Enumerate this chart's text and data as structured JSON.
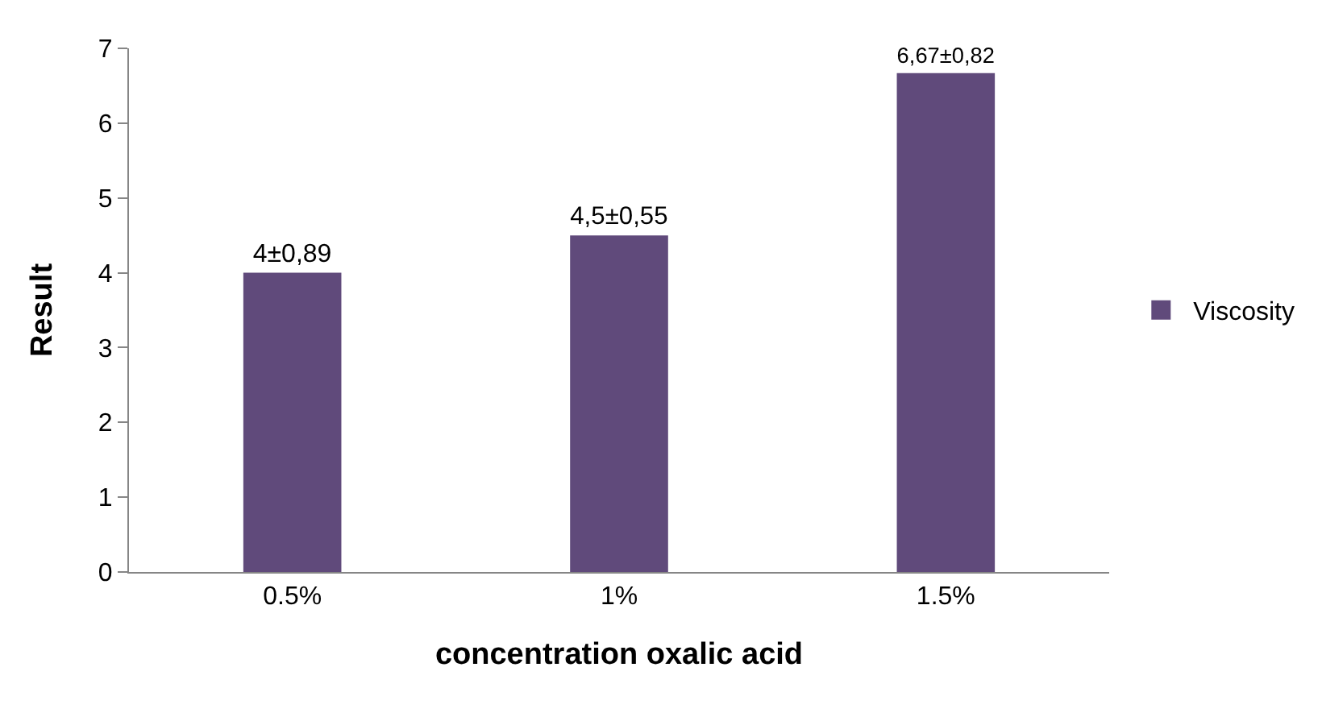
{
  "chart_data": {
    "type": "bar",
    "xlabel": "concentration oxalic acid",
    "ylabel": "Result",
    "categories": [
      "0.5%",
      "1%",
      "1.5%"
    ],
    "series": [
      {
        "name": "Viscosity",
        "color": "#604a7b",
        "values": [
          4,
          4.5,
          6.67
        ]
      }
    ],
    "value_labels": [
      "4±0,89",
      "4,5±0,55",
      "6,67±0,82"
    ],
    "ylim": [
      0,
      7
    ],
    "yticks": [
      0,
      1,
      2,
      3,
      4,
      5,
      6,
      7
    ],
    "grid": false,
    "legend": "right"
  }
}
